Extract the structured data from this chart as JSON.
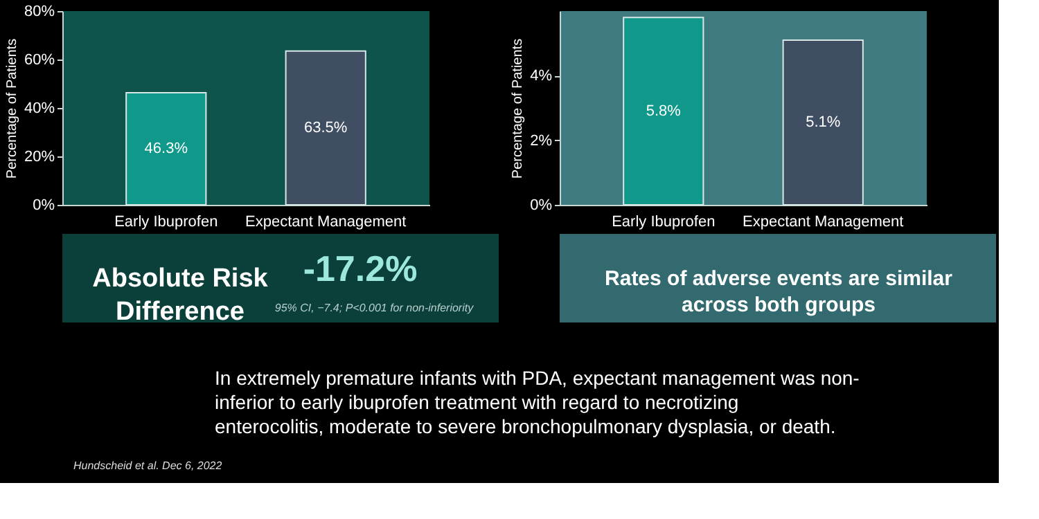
{
  "chart_data": [
    {
      "type": "bar",
      "categories": [
        "Early Ibuprofen",
        "Expectant Management"
      ],
      "values": [
        46.3,
        63.5
      ],
      "colors": [
        "#10998a",
        "#3f4e63"
      ],
      "ylabel": "Percentage of Patients",
      "ylim": [
        0,
        80
      ],
      "yticks": [
        {
          "value": 0,
          "label": "0%"
        },
        {
          "value": 20,
          "label": "20%"
        },
        {
          "value": 40,
          "label": "40%"
        },
        {
          "value": 60,
          "label": "60%"
        },
        {
          "value": 80,
          "label": "80%"
        }
      ],
      "value_labels": [
        "46.3%",
        "63.5%"
      ],
      "annotations": [
        "Absolute Risk Difference",
        "-17.2%",
        "95% CI, −7.4; P<0.001 for non-inferiority"
      ]
    },
    {
      "type": "bar",
      "categories": [
        "Early Ibuprofen",
        "Expectant Management"
      ],
      "values": [
        5.8,
        5.1
      ],
      "colors": [
        "#10998a",
        "#3f4e63"
      ],
      "ylabel": "Percentage of Patients",
      "ylim": [
        0,
        6
      ],
      "yticks": [
        {
          "value": 0,
          "label": "0%"
        },
        {
          "value": 2,
          "label": "2%"
        },
        {
          "value": 4,
          "label": "4%"
        }
      ],
      "value_labels": [
        "5.8%",
        "5.1%"
      ],
      "annotations": [
        "Rates of adverse events are similar across both groups"
      ]
    },
    {
      "type": "other",
      "annotations": [
        "In extremely premature infants with PDA, expectant management was non-inferior to early ibuprofen treatment with regard to necrotizing enterocolitis, moderate to severe bronchopulmonary dysplasia, or death.",
        "Hundscheid et al. Dec 6, 2022"
      ]
    }
  ]
}
